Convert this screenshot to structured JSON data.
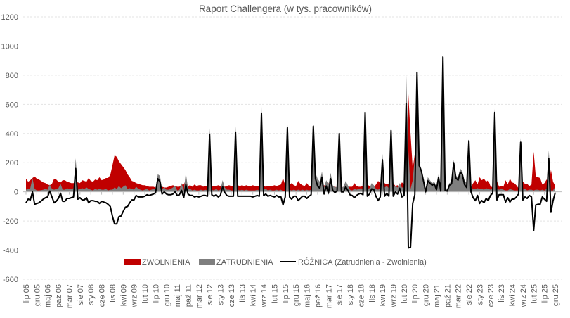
{
  "chart_data": {
    "type": "area",
    "title": "Raport Challengera (w tys. pracowników)",
    "xlabel": "",
    "ylabel": "",
    "ylim": [
      -600,
      1200
    ],
    "y_ticks": [
      -600,
      -400,
      -200,
      0,
      200,
      400,
      600,
      800,
      1000,
      1200
    ],
    "grid": true,
    "legend_position": "bottom-inside",
    "start_month": "lip 05",
    "end_month": "gru 25",
    "tick_every_months": 5,
    "x_tick_labels": [
      "lip 05",
      "gru 05",
      "maj 06",
      "paź 06",
      "mar 07",
      "sie 07",
      "sty 08",
      "cze 08",
      "lis 08",
      "kwi 09",
      "wrz 09",
      "lut 10",
      "lip 10",
      "gru 10",
      "maj 11",
      "paź 11",
      "mar 12",
      "sie 12",
      "sty 13",
      "cze 13",
      "lis 13",
      "kwi 14",
      "wrz 14",
      "lut 15",
      "lip 15",
      "gru 15",
      "maj 16",
      "paź 16",
      "mar 17",
      "sie 17",
      "sty 18",
      "cze 18",
      "lis 18",
      "kwi 19",
      "wrz 19",
      "lut 20",
      "lip 20",
      "gru 20",
      "maj 21",
      "paź 21",
      "mar 22",
      "sie 22",
      "sty 23",
      "cze 23",
      "lis 23",
      "kwi 24",
      "wrz 24",
      "lut 25",
      "lip 25",
      "gru 25"
    ],
    "series": [
      {
        "name": "ZWOLNIENIA",
        "kind": "area",
        "color": "#C00000",
        "values": [
          90,
          70,
          80,
          95,
          105,
          90,
          85,
          75,
          65,
          60,
          50,
          45,
          55,
          90,
          85,
          70,
          65,
          80,
          80,
          70,
          65,
          60,
          60,
          70,
          65,
          60,
          80,
          75,
          70,
          95,
          75,
          70,
          85,
          80,
          100,
          80,
          85,
          95,
          95,
          115,
          180,
          250,
          240,
          210,
          190,
          170,
          150,
          120,
          100,
          75,
          70,
          60,
          55,
          50,
          45,
          45,
          40,
          35,
          35,
          35,
          30,
          30,
          40,
          35,
          30,
          30,
          35,
          40,
          45,
          40,
          35,
          35,
          50,
          50,
          80,
          40,
          45,
          35,
          50,
          40,
          45,
          45,
          35,
          40,
          40,
          40,
          35,
          40,
          40,
          45,
          40,
          45,
          35,
          40,
          45,
          40,
          40,
          40,
          45,
          40,
          45,
          40,
          45,
          40,
          40,
          45,
          40,
          40,
          40,
          45,
          40,
          35,
          40,
          40,
          40,
          45,
          40,
          45,
          50,
          95,
          45,
          40,
          50,
          60,
          45,
          40,
          75,
          55,
          45,
          40,
          60,
          40,
          35,
          40,
          40,
          50,
          45,
          40,
          45,
          40,
          60,
          40,
          35,
          35,
          30,
          30,
          30,
          35,
          40,
          35,
          35,
          35,
          60,
          40,
          35,
          35,
          40,
          45,
          50,
          40,
          40,
          30,
          50,
          75,
          60,
          40,
          60,
          50,
          55,
          50,
          60,
          40,
          45,
          35,
          65,
          55,
          215,
          670,
          400,
          160,
          260,
          40,
          20,
          15,
          15,
          20,
          25,
          20,
          15,
          15,
          15,
          20,
          15,
          15,
          20,
          15,
          15,
          15,
          20,
          15,
          20,
          25,
          20,
          30,
          30,
          25,
          30,
          60,
          80,
          50,
          100,
          80,
          90,
          70,
          80,
          40,
          30,
          25,
          75,
          35,
          40,
          35,
          80,
          50,
          90,
          65,
          60,
          45,
          25,
          30,
          70,
          55,
          55,
          40,
          50,
          275,
          105,
          100,
          95,
          50,
          60,
          85,
          55,
          150,
          70,
          40
        ]
      },
      {
        "name": "ZATRUDNIENIA",
        "kind": "area",
        "color": "#7F7F7F",
        "values": [
          15,
          20,
          25,
          95,
          20,
          10,
          10,
          12,
          15,
          20,
          15,
          50,
          20,
          15,
          20,
          25,
          55,
          15,
          15,
          25,
          20,
          20,
          25,
          230,
          15,
          20,
          25,
          20,
          30,
          20,
          15,
          10,
          20,
          15,
          20,
          15,
          15,
          20,
          10,
          15,
          15,
          30,
          20,
          40,
          25,
          35,
          45,
          20,
          25,
          20,
          15,
          35,
          20,
          15,
          10,
          15,
          20,
          10,
          15,
          20,
          25,
          120,
          110,
          20,
          30,
          15,
          15,
          20,
          30,
          40,
          10,
          15,
          60,
          10,
          130,
          25,
          20,
          10,
          15,
          10,
          10,
          15,
          10,
          15,
          10,
          435,
          15,
          10,
          20,
          10,
          15,
          80,
          30,
          15,
          15,
          10,
          10,
          450,
          15,
          10,
          15,
          10,
          15,
          10,
          10,
          10,
          10,
          15,
          10,
          585,
          15,
          20,
          10,
          15,
          10,
          10,
          15,
          10,
          15,
          5,
          10,
          480,
          15,
          10,
          15,
          10,
          15,
          10,
          15,
          10,
          15,
          10,
          15,
          490,
          130,
          90,
          70,
          140,
          30,
          80,
          50,
          130,
          45,
          30,
          35,
          430,
          30,
          35,
          75,
          45,
          15,
          10,
          20,
          15,
          20,
          25,
          20,
          590,
          20,
          25,
          60,
          45,
          20,
          15,
          25,
          260,
          30,
          40,
          25,
          470,
          30,
          40,
          30,
          60,
          30,
          30,
          820,
          285,
          20,
          80,
          240,
          860,
          200,
          160,
          90,
          20,
          100,
          80,
          60,
          70,
          30,
          120,
          20,
          940,
          30,
          20,
          60,
          70,
          220,
          110,
          100,
          160,
          140,
          80,
          60,
          375,
          30,
          20,
          20,
          25,
          20,
          20,
          15,
          25,
          20,
          15,
          20,
          570,
          20,
          15,
          20,
          15,
          10,
          10,
          20,
          15,
          10,
          10,
          10,
          370,
          15,
          20,
          10,
          15,
          15,
          10,
          15,
          15,
          10,
          15,
          10,
          20,
          285,
          10,
          10,
          35
        ]
      },
      {
        "name": "RÓŻNICA (Zatrudnienia - Zwolnienia)",
        "kind": "line",
        "color": "#000000",
        "derived": "ZATRUDNIENIA - ZWOLNIENIA"
      }
    ]
  }
}
